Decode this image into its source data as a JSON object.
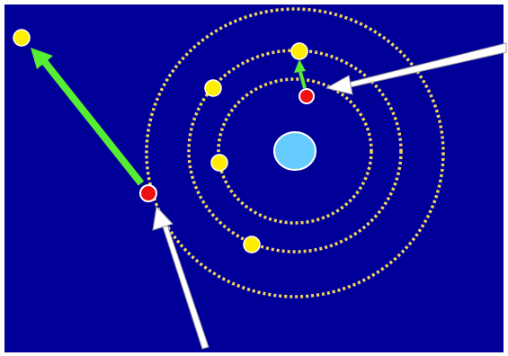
{
  "diagram": {
    "colors": {
      "background": "#000099",
      "nucleus_fill": "#66ccff",
      "nucleus_stroke": "#ffffff",
      "orbit": "#f2d45c",
      "electron": "#ffee00",
      "electron_stroke": "#ffffff",
      "excited_electron": "#ee1111",
      "green_arrow": "#55ee33",
      "photon_arrow": "#ffffff"
    },
    "elements": {
      "nucleus": "nucleus",
      "orbits": [
        "orbit-1",
        "orbit-2",
        "orbit-3"
      ],
      "electrons": [
        "electron-outer-top",
        "electron-middle-left",
        "electron-inner-left",
        "electron-middle-bottom",
        "electron-ejected"
      ],
      "excited_electrons": [
        "electron-excited-inner",
        "electron-excited-outer"
      ],
      "arrows": [
        "photon-arrow-right",
        "photon-arrow-bottom",
        "green-arrow-short",
        "green-arrow-long"
      ]
    }
  }
}
